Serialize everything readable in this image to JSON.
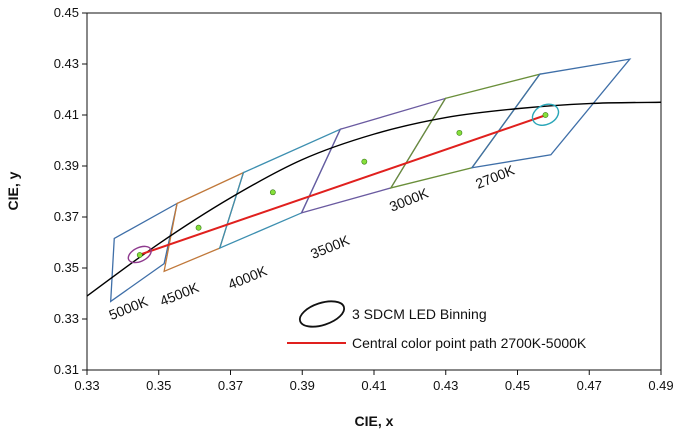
{
  "chart_data": {
    "type": "scatter",
    "xlabel": "CIE, x",
    "ylabel": "CIE, y",
    "xlim": [
      0.33,
      0.49
    ],
    "ylim": [
      0.31,
      0.45
    ],
    "xticks": [
      "0.33",
      "0.35",
      "0.37",
      "0.39",
      "0.41",
      "0.43",
      "0.45",
      "0.47",
      "0.49"
    ],
    "yticks": [
      "0.31",
      "0.33",
      "0.35",
      "0.37",
      "0.39",
      "0.41",
      "0.43",
      "0.45"
    ],
    "grid": false,
    "legend": {
      "position": "bottom-right",
      "entries": [
        "3 SDCM LED Binning",
        "Central color point path 2700K-5000K"
      ]
    },
    "colors": {
      "locus": "#000000",
      "path": "#e0201e",
      "points": "#86e03a",
      "ellipse_5000K": "#8e3a8e",
      "ellipse_2700K": "#2aa6b8"
    },
    "planckian_locus": {
      "x": [
        0.33,
        0.35,
        0.37,
        0.39,
        0.41,
        0.43,
        0.45,
        0.47,
        0.49
      ],
      "y": [
        0.339,
        0.3595,
        0.3775,
        0.3925,
        0.4025,
        0.409,
        0.4125,
        0.4145,
        0.415
      ]
    },
    "central_path": {
      "x": [
        0.3447,
        0.458
      ],
      "y": [
        0.3552,
        0.41
      ]
    },
    "center_points": {
      "cct": [
        "5000K",
        "4500K",
        "4000K",
        "3500K",
        "3000K",
        "2700K"
      ],
      "x": [
        0.3447,
        0.3611,
        0.3818,
        0.4073,
        0.4338,
        0.4578
      ],
      "y": [
        0.3551,
        0.3658,
        0.3797,
        0.3917,
        0.403,
        0.41
      ]
    },
    "bins": [
      {
        "cct": "5000K",
        "color": "#3f6fa8",
        "x": [
          0.3376,
          0.3551,
          0.3515,
          0.3366
        ],
        "y": [
          0.3616,
          0.3753,
          0.3517,
          0.3369
        ]
      },
      {
        "cct": "4500K",
        "color": "#c0783a",
        "x": [
          0.3551,
          0.3736,
          0.367,
          0.3515
        ],
        "y": [
          0.3753,
          0.3874,
          0.3578,
          0.3487
        ]
      },
      {
        "cct": "4000K",
        "color": "#3d8fb0",
        "x": [
          0.3736,
          0.4006,
          0.3898,
          0.367
        ],
        "y": [
          0.3874,
          0.4044,
          0.3716,
          0.3578
        ]
      },
      {
        "cct": "3500K",
        "color": "#6a5aa0",
        "x": [
          0.4006,
          0.4299,
          0.4147,
          0.3898
        ],
        "y": [
          0.4044,
          0.4165,
          0.3814,
          0.3716
        ]
      },
      {
        "cct": "3000K",
        "color": "#6a8f3a",
        "x": [
          0.4299,
          0.4562,
          0.4373,
          0.4147
        ],
        "y": [
          0.4165,
          0.426,
          0.3893,
          0.3814
        ]
      },
      {
        "cct": "2700K",
        "color": "#3f6fa8",
        "x": [
          0.4562,
          0.4813,
          0.4593,
          0.4373
        ],
        "y": [
          0.426,
          0.4319,
          0.3944,
          0.3893
        ]
      }
    ],
    "ellipses": [
      {
        "cct": "5000K",
        "cx": 0.3447,
        "cy": 0.3553,
        "a": 0.0034,
        "b": 0.0027,
        "color": "#8e3a8e"
      },
      {
        "cct": "2700K",
        "cx": 0.4578,
        "cy": 0.4101,
        "a": 0.0038,
        "b": 0.0038,
        "color": "#2aa6b8"
      }
    ],
    "cct_labels": [
      "5000K",
      "4500K",
      "4000K",
      "3500K",
      "3000K",
      "2700K"
    ]
  }
}
